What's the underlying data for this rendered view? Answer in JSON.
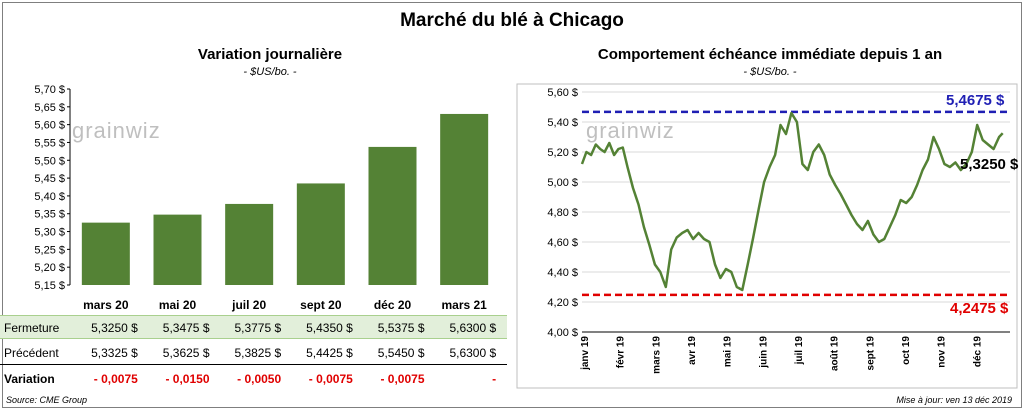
{
  "title": "Marché du blé à Chicago",
  "logo_text": "grainwiz",
  "footer": {
    "source": "Source: CME Group",
    "update": "Mise à jour: ven 13 déc 2019"
  },
  "colors": {
    "bar": "#548235",
    "line": "#548235",
    "high_ref": "#1f1fb4",
    "low_ref": "#e00000",
    "negative": "#e00000",
    "fermeture_bg": "#e2efda"
  },
  "table": {
    "fermeture_label": "Fermeture",
    "precedent_label": "Précédent",
    "variation_label": "Variation",
    "fermeture": [
      "5,3250  $",
      "5,3475  $",
      "5,3775  $",
      "5,4350  $",
      "5,5375  $",
      "5,6300  $"
    ],
    "precedent": [
      "5,3325  $",
      "5,3625  $",
      "5,3825  $",
      "5,4425  $",
      "5,5450  $",
      "5,6300  $"
    ],
    "variation": [
      "- 0,0075",
      "- 0,0150",
      "- 0,0050",
      "- 0,0075",
      "- 0,0075",
      "-"
    ]
  },
  "chart_data": [
    {
      "type": "bar",
      "title": "Variation  journalière",
      "subtitle": "- $US/bo. -",
      "categories": [
        "mars 20",
        "mai 20",
        "juil 20",
        "sept 20",
        "déc 20",
        "mars 21"
      ],
      "values": [
        5.325,
        5.3475,
        5.3775,
        5.435,
        5.5375,
        5.63
      ],
      "ylim": [
        5.15,
        5.7
      ],
      "yticks": [
        "5,15 $",
        "5,20 $",
        "5,25 $",
        "5,30 $",
        "5,35 $",
        "5,40 $",
        "5,45 $",
        "5,50 $",
        "5,55 $",
        "5,60 $",
        "5,65 $",
        "5,70 $"
      ],
      "grid": false,
      "legend": "none"
    },
    {
      "type": "line",
      "title": "Comportement  échéance immédiate depuis 1 an",
      "subtitle": "- $US/bo. -",
      "ylim": [
        4.0,
        5.6
      ],
      "yticks": [
        "4,00 $",
        "4,20 $",
        "4,40 $",
        "4,60 $",
        "4,80 $",
        "5,00 $",
        "5,20 $",
        "5,40 $",
        "5,60 $"
      ],
      "xticks": [
        "janv 19",
        "févr 19",
        "mars 19",
        "avr 19",
        "mai 19",
        "juin 19",
        "juil 19",
        "août 19",
        "sept 19",
        "oct 19",
        "nov 19",
        "déc 19"
      ],
      "grid": "horizontal",
      "reference_lines": [
        {
          "value": 5.4675,
          "label": "5,4675  $"
        },
        {
          "value": 4.2475,
          "label": "4,2475  $"
        }
      ],
      "last_value_label": "5,3250 $",
      "series": [
        {
          "x": [
            0,
            0.12,
            0.25,
            0.38,
            0.5,
            0.62,
            0.75,
            0.88,
            1,
            1.12,
            1.25,
            1.4,
            1.55,
            1.7,
            1.85,
            2,
            2.15,
            2.3,
            2.45,
            2.6,
            2.75,
            2.9,
            3.05,
            3.2,
            3.35,
            3.5,
            3.65,
            3.8,
            3.95,
            4.1,
            4.25,
            4.4,
            4.55,
            4.7,
            4.85,
            5,
            5.15,
            5.3,
            5.45,
            5.6,
            5.75,
            5.9,
            6.05,
            6.2,
            6.35,
            6.5,
            6.65,
            6.8,
            6.95,
            7.1,
            7.25,
            7.4,
            7.55,
            7.7,
            7.85,
            8,
            8.15,
            8.3,
            8.45,
            8.6,
            8.75,
            8.9,
            9.05,
            9.2,
            9.35,
            9.5,
            9.65,
            9.8,
            9.95,
            10.1,
            10.25,
            10.4,
            10.55,
            10.7,
            10.85,
            11,
            11.15,
            11.3,
            11.45,
            11.55
          ],
          "y": [
            5.12,
            5.2,
            5.18,
            5.25,
            5.22,
            5.2,
            5.26,
            5.18,
            5.22,
            5.23,
            5.1,
            4.96,
            4.85,
            4.7,
            4.58,
            4.45,
            4.4,
            4.3,
            4.55,
            4.63,
            4.66,
            4.68,
            4.62,
            4.66,
            4.62,
            4.6,
            4.45,
            4.36,
            4.42,
            4.4,
            4.3,
            4.28,
            4.45,
            4.63,
            4.82,
            5.0,
            5.1,
            5.18,
            5.38,
            5.32,
            5.46,
            5.4,
            5.12,
            5.08,
            5.2,
            5.25,
            5.18,
            5.05,
            4.98,
            4.92,
            4.85,
            4.78,
            4.72,
            4.68,
            4.74,
            4.65,
            4.6,
            4.62,
            4.7,
            4.78,
            4.88,
            4.86,
            4.9,
            4.98,
            5.08,
            5.15,
            5.3,
            5.22,
            5.12,
            5.1,
            5.13,
            5.08,
            5.12,
            5.2,
            5.38,
            5.28,
            5.25,
            5.22,
            5.3,
            5.325
          ]
        }
      ]
    }
  ]
}
